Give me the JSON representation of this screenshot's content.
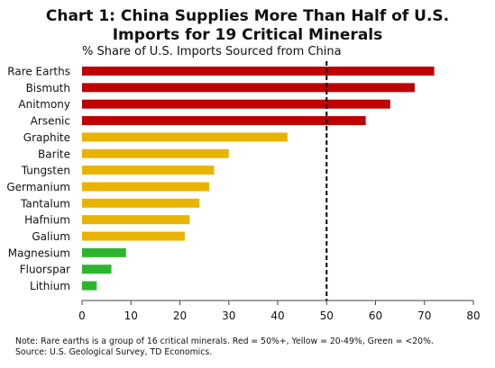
{
  "header": {
    "title_line1": "Chart 1: China Supplies More Than Half of U.S.",
    "title_line2": "Imports for 19 Critical Minerals",
    "subtitle": "% Share of U.S. Imports Sourced from China"
  },
  "footer": {
    "note": "Note: Rare earths is a group of 16 critical minerals. Red = 50%+, Yellow = 20-49%, Green = <20%.",
    "source": "Source: U.S. Geological Survey, TD Economics."
  },
  "colors": {
    "red": "#c00000",
    "yellow": "#e8b400",
    "green": "#2db52d",
    "axis": "#444444",
    "reference_line": "#000000"
  },
  "chart_data": {
    "type": "bar",
    "orientation": "horizontal",
    "title": "Chart 1: China Supplies More Than Half of U.S. Imports for 19 Critical Minerals",
    "subtitle": "% Share of U.S. Imports Sourced from China",
    "categories": [
      "Rare Earths",
      "Bismuth",
      "Anitmony",
      "Arsenic",
      "Graphite",
      "Barite",
      "Tungsten",
      "Germanium",
      "Tantalum",
      "Hafnium",
      "Galium",
      "Magnesium",
      "Fluorspar",
      "Lithium"
    ],
    "values": [
      72,
      68,
      63,
      58,
      42,
      30,
      27,
      26,
      24,
      22,
      21,
      9,
      6,
      3
    ],
    "bar_colors": [
      "red",
      "red",
      "red",
      "red",
      "yellow",
      "yellow",
      "yellow",
      "yellow",
      "yellow",
      "yellow",
      "yellow",
      "green",
      "green",
      "green"
    ],
    "xlim": [
      0,
      80
    ],
    "xticks": [
      0,
      10,
      20,
      30,
      40,
      50,
      60,
      70,
      80
    ],
    "reference_line": {
      "x": 50,
      "style": "dashed"
    },
    "grid": false,
    "xlabel": "",
    "ylabel": ""
  }
}
